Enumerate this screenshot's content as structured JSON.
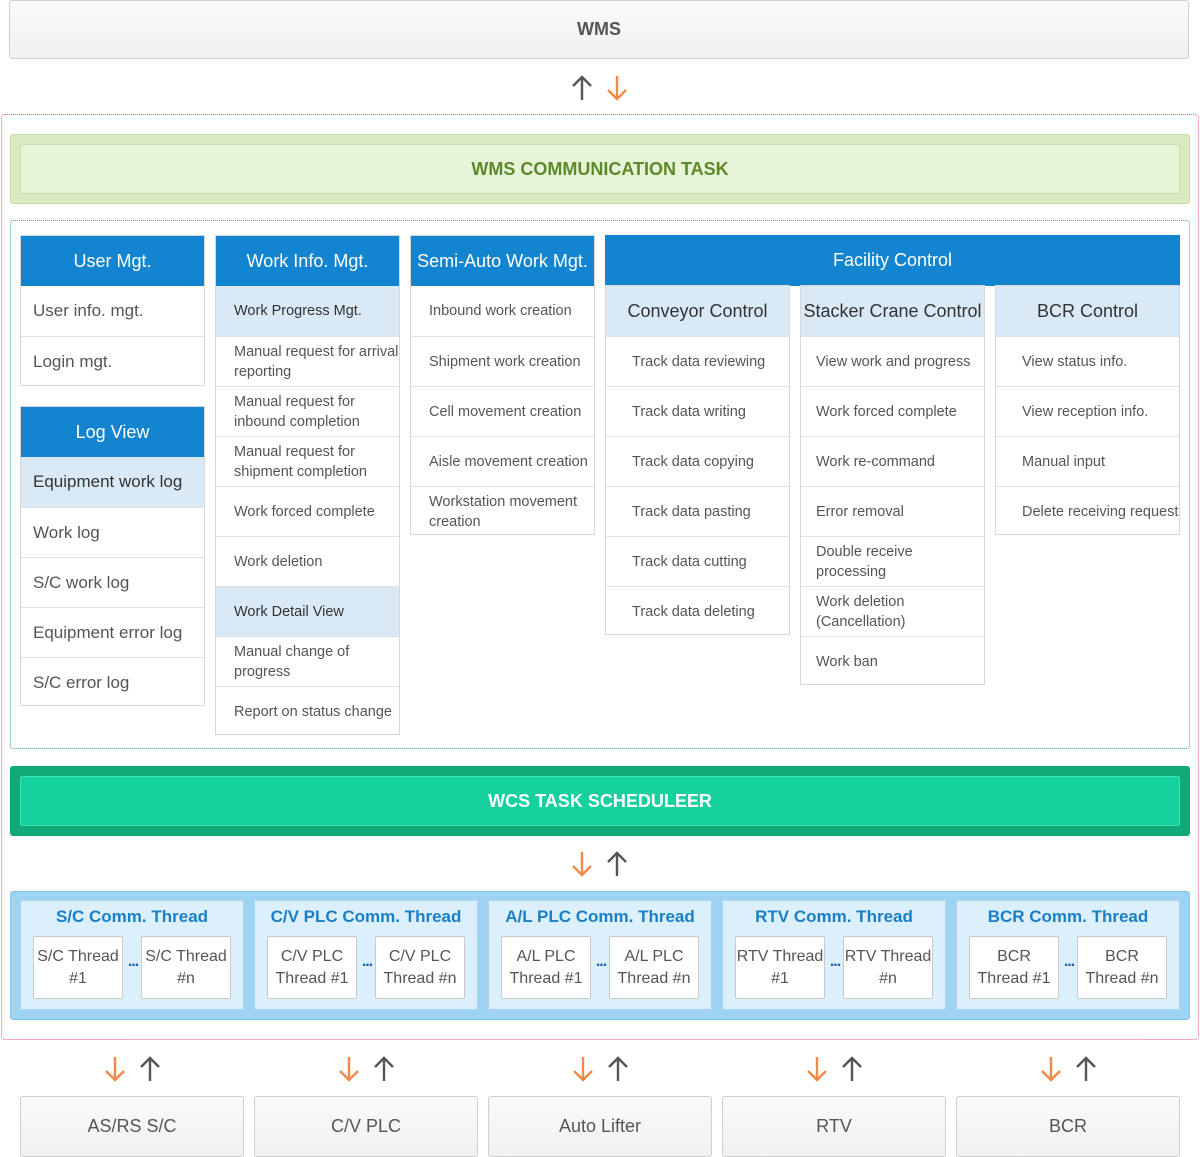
{
  "wms": {
    "label": "WMS"
  },
  "comm_task": {
    "label": "WMS COMMUNICATION TASK"
  },
  "user_mgt": {
    "title": "User Mgt.",
    "items": [
      "User info. mgt.",
      "Login mgt."
    ]
  },
  "log_view": {
    "title": "Log View",
    "subheader": "Equipment work log",
    "items": [
      "Work log",
      "S/C work log",
      "Equipment error log",
      "S/C error log"
    ]
  },
  "work_info": {
    "title": "Work Info. Mgt.",
    "group1": "Work Progress Mgt.",
    "group1_items": [
      "Manual request for arrival reporting",
      "Manual request for inbound completion",
      "Manual request for shipment completion",
      "Work forced complete",
      "Work deletion"
    ],
    "group2": "Work Detail View",
    "group2_items": [
      "Manual change of progress",
      "Report on status change"
    ]
  },
  "semi_auto": {
    "title": "Semi-Auto Work Mgt.",
    "items": [
      "Inbound work creation",
      "Shipment work creation",
      "Cell movement creation",
      "Aisle movement creation",
      "Workstation movement creation"
    ]
  },
  "facility": {
    "title": "Facility Control",
    "conveyor": {
      "title": "Conveyor Control",
      "items": [
        "Track data reviewing",
        "Track data writing",
        "Track data copying",
        "Track data pasting",
        "Track data cutting",
        "Track data deleting"
      ]
    },
    "stacker": {
      "title": "Stacker Crane Control",
      "items": [
        "View work and progress",
        "Work forced complete",
        "Work re-command",
        "Error removal",
        "Double receive processing",
        "Work deletion (Cancellation)",
        "Work ban"
      ]
    },
    "bcr": {
      "title": "BCR Control",
      "items": [
        "View status info.",
        "View reception info.",
        "Manual input",
        "Delete receiving request"
      ]
    }
  },
  "scheduler": {
    "label": "WCS TASK SCHEDULEER"
  },
  "threads": [
    {
      "title": "S/C Comm. Thread",
      "first": "S/C Thread #1",
      "last": "S/C Thread #n",
      "dots": "..."
    },
    {
      "title": "C/V PLC Comm. Thread",
      "first": "C/V PLC Thread #1",
      "last": "C/V PLC Thread #n",
      "dots": "..."
    },
    {
      "title": "A/L PLC Comm. Thread",
      "first": "A/L PLC Thread #1",
      "last": "A/L PLC Thread #n",
      "dots": "..."
    },
    {
      "title": "RTV Comm. Thread",
      "first": "RTV Thread #1",
      "last": "RTV Thread #n",
      "dots": "..."
    },
    {
      "title": "BCR Comm. Thread",
      "first": "BCR Thread #1",
      "last": "BCR Thread #n",
      "dots": "..."
    }
  ],
  "equipment": [
    "AS/RS S/C",
    "C/V PLC",
    "Auto Lifter",
    "RTV",
    "BCR"
  ],
  "colors": {
    "panel_header": "#1384cf",
    "subheader_bg": "#d9eaf6",
    "comm_task_text": "#5c8a2a",
    "scheduler_bg": "#14d19e",
    "thread_title": "#1a7fc6",
    "arrow_up": "#555555",
    "arrow_down": "#f08a4b",
    "wcs_boundary": "#e8606c",
    "module_boundary": "#35b389"
  },
  "icons": {
    "up": "arrow-up-icon",
    "down": "arrow-down-icon"
  }
}
